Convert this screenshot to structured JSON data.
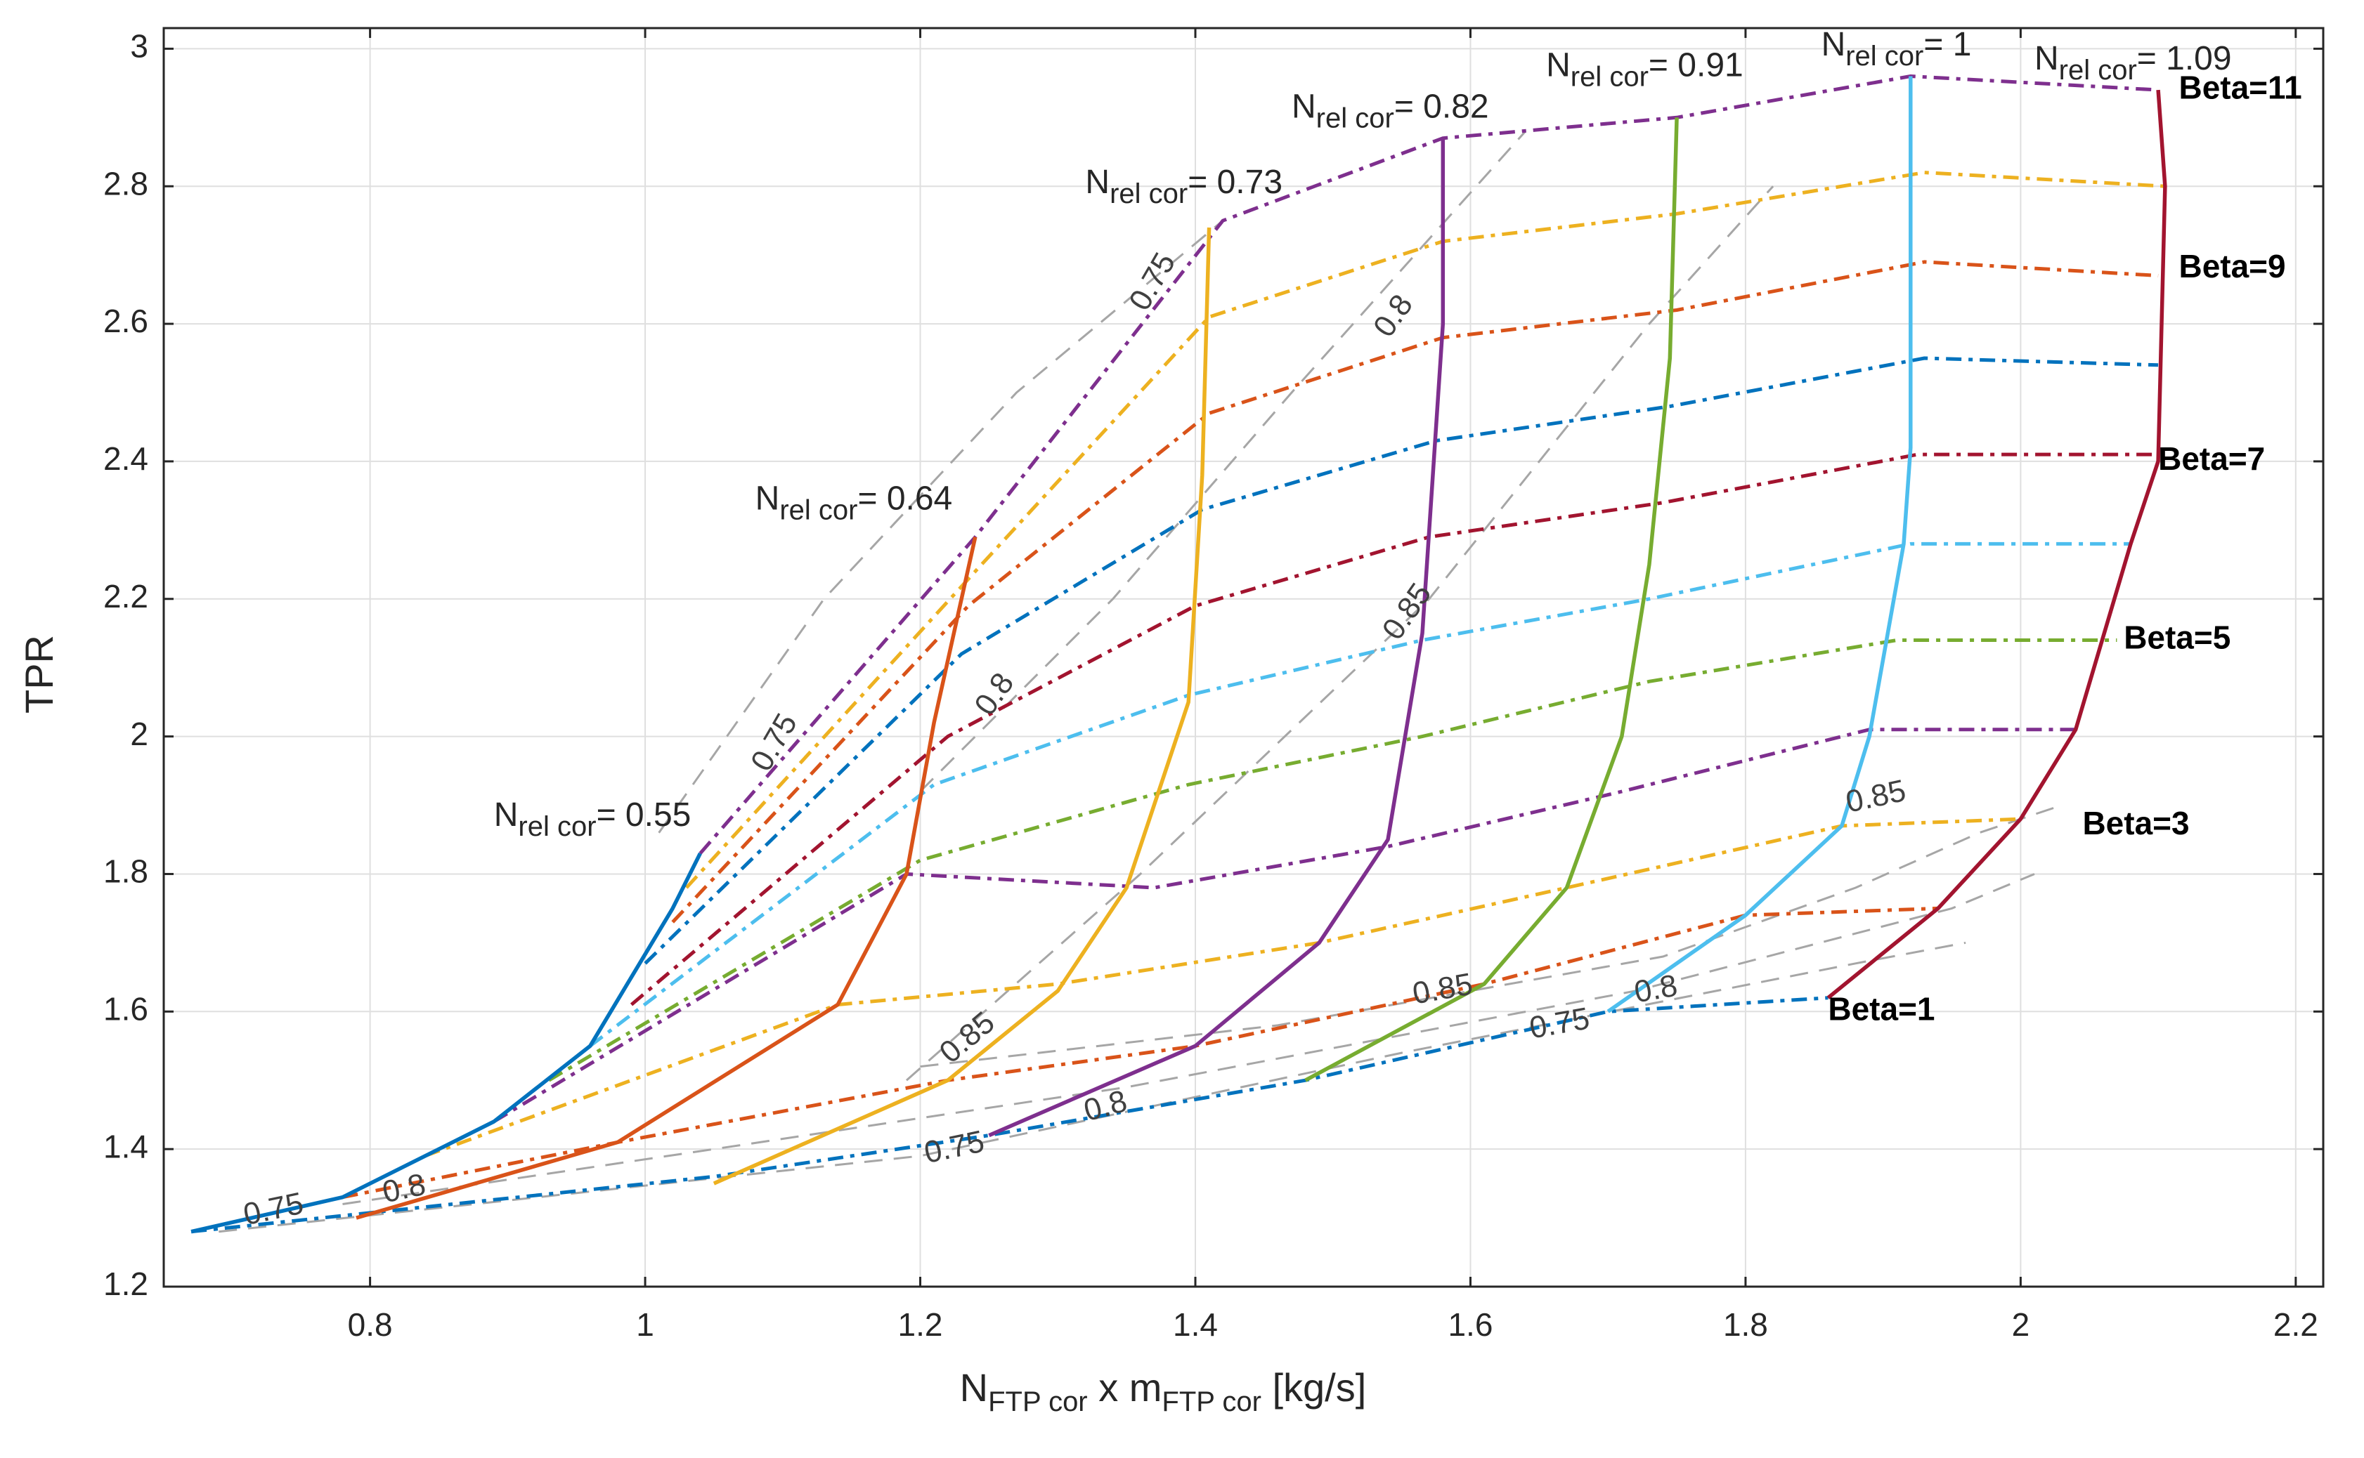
{
  "chart_data": {
    "type": "line",
    "title": "",
    "xlabel": "N_FTP cor x m_FTP cor [kg/s]",
    "xlabel_parts": {
      "a": "N",
      "a_sub": "FTP cor",
      "b": " x m",
      "b_sub": "FTP cor",
      "c": " [kg/s]"
    },
    "ylabel": "TPR",
    "xlim": [
      0.65,
      2.22
    ],
    "ylim": [
      1.2,
      3.03
    ],
    "grid": true,
    "xticks": [
      0.8,
      1,
      1.2,
      1.4,
      1.6,
      1.8,
      2,
      2.2
    ],
    "xtick_labels": [
      "0.8",
      "1",
      "1.2",
      "1.4",
      "1.6",
      "1.8",
      "2",
      "2.2"
    ],
    "yticks": [
      1.2,
      1.4,
      1.6,
      1.8,
      2,
      2.2,
      2.4,
      2.6,
      2.8,
      3
    ],
    "ytick_labels": [
      "1.2",
      "1.4",
      "1.6",
      "1.8",
      "2",
      "2.2",
      "2.4",
      "2.6",
      "2.8",
      "3"
    ],
    "speed_lines": [
      {
        "label_main": "N",
        "label_sub": "rel cor",
        "label_val": "= 0.55",
        "color": "#0072BD",
        "x": [
          0.67,
          0.78,
          0.89,
          0.96,
          0.99,
          1.02,
          1.04
        ],
        "y": [
          1.28,
          1.33,
          1.44,
          1.55,
          1.65,
          1.75,
          1.83
        ]
      },
      {
        "label_main": "N",
        "label_sub": "rel cor",
        "label_val": "= 0.64",
        "color": "#D95319",
        "x": [
          0.79,
          0.98,
          1.14,
          1.19,
          1.21,
          1.23,
          1.24
        ],
        "y": [
          1.3,
          1.41,
          1.61,
          1.8,
          2.02,
          2.2,
          2.29
        ]
      },
      {
        "label_main": "N",
        "label_sub": "rel cor",
        "label_val": "= 0.73",
        "color": "#EDB120",
        "x": [
          1.05,
          1.22,
          1.3,
          1.35,
          1.395,
          1.405,
          1.41
        ],
        "y": [
          1.35,
          1.5,
          1.63,
          1.78,
          2.05,
          2.38,
          2.74
        ]
      },
      {
        "label_main": "N",
        "label_sub": "rel cor",
        "label_val": "= 0.82",
        "color": "#7E2F8E",
        "x": [
          1.25,
          1.4,
          1.49,
          1.54,
          1.565,
          1.58,
          1.58
        ],
        "y": [
          1.42,
          1.55,
          1.7,
          1.85,
          2.15,
          2.6,
          2.87
        ]
      },
      {
        "label_main": "N",
        "label_sub": "rel cor",
        "label_val": "= 0.91",
        "color": "#77AC30",
        "x": [
          1.48,
          1.61,
          1.67,
          1.71,
          1.73,
          1.745,
          1.75
        ],
        "y": [
          1.5,
          1.64,
          1.78,
          2.0,
          2.25,
          2.55,
          2.9
        ]
      },
      {
        "label_main": "N",
        "label_sub": "rel cor",
        "label_val": "= 1",
        "color": "#4DBEEE",
        "x": [
          1.7,
          1.8,
          1.87,
          1.89,
          1.915,
          1.92,
          1.92
        ],
        "y": [
          1.6,
          1.74,
          1.87,
          2.0,
          2.28,
          2.42,
          2.96
        ]
      },
      {
        "label_main": "N",
        "label_sub": "rel cor",
        "label_val": "= 1.09",
        "color": "#A2142F",
        "x": [
          1.86,
          1.94,
          2.0,
          2.04,
          2.08,
          2.1,
          2.105,
          2.1
        ],
        "y": [
          1.62,
          1.75,
          1.88,
          2.01,
          2.28,
          2.4,
          2.8,
          2.94
        ]
      }
    ],
    "beta_lines": [
      {
        "name": "Beta=1",
        "color": "#0072BD",
        "x": [
          0.67,
          1.05,
          1.25,
          1.48,
          1.7,
          1.86
        ],
        "y": [
          1.28,
          1.36,
          1.42,
          1.5,
          1.6,
          1.62
        ]
      },
      {
        "name": "Beta=2",
        "color": "#D95319",
        "x": [
          0.78,
          0.98,
          1.22,
          1.4,
          1.61,
          1.8,
          1.94
        ],
        "y": [
          1.33,
          1.41,
          1.5,
          1.55,
          1.64,
          1.74,
          1.75
        ]
      },
      {
        "name": "Beta=3",
        "color": "#EDB120",
        "x": [
          0.84,
          1.14,
          1.3,
          1.49,
          1.67,
          1.87,
          2.0
        ],
        "y": [
          1.39,
          1.61,
          1.64,
          1.7,
          1.78,
          1.87,
          1.88
        ]
      },
      {
        "name": "Beta=4",
        "color": "#7E2F8E",
        "x": [
          0.89,
          1.19,
          1.37,
          1.54,
          1.71,
          1.89,
          2.04
        ],
        "y": [
          1.44,
          1.8,
          1.78,
          1.84,
          1.92,
          2.01,
          2.01
        ]
      },
      {
        "name": "Beta=5",
        "color": "#77AC30",
        "x": [
          0.93,
          1.2,
          1.395,
          1.565,
          1.73,
          1.91,
          2.07
        ],
        "y": [
          1.5,
          1.82,
          1.93,
          2.0,
          2.08,
          2.14,
          2.14
        ]
      },
      {
        "name": "Beta=6",
        "color": "#4DBEEE",
        "x": [
          0.96,
          1.21,
          1.395,
          1.565,
          1.73,
          1.92,
          2.08
        ],
        "y": [
          1.55,
          1.93,
          2.06,
          2.14,
          2.2,
          2.28,
          2.28
        ]
      },
      {
        "name": "Beta=7",
        "color": "#A2142F",
        "x": [
          0.99,
          1.22,
          1.4,
          1.57,
          1.74,
          1.925,
          2.1
        ],
        "y": [
          1.61,
          2.0,
          2.19,
          2.29,
          2.34,
          2.41,
          2.41
        ]
      },
      {
        "name": "Beta=8",
        "color": "#0072BD",
        "x": [
          1.0,
          1.23,
          1.405,
          1.575,
          1.745,
          1.93,
          2.1
        ],
        "y": [
          1.67,
          2.12,
          2.33,
          2.43,
          2.48,
          2.55,
          2.54
        ]
      },
      {
        "name": "Beta=9",
        "color": "#D95319",
        "x": [
          1.02,
          1.235,
          1.41,
          1.58,
          1.75,
          1.93,
          2.1
        ],
        "y": [
          1.73,
          2.19,
          2.47,
          2.58,
          2.62,
          2.69,
          2.67
        ]
      },
      {
        "name": "Beta=10",
        "color": "#EDB120",
        "x": [
          1.03,
          1.24,
          1.41,
          1.58,
          1.75,
          1.93,
          2.105
        ],
        "y": [
          1.78,
          2.24,
          2.61,
          2.72,
          2.76,
          2.82,
          2.8
        ]
      },
      {
        "name": "Beta=11",
        "color": "#7E2F8E",
        "x": [
          1.04,
          1.24,
          1.42,
          1.58,
          1.75,
          1.92,
          2.1
        ],
        "y": [
          1.83,
          2.29,
          2.75,
          2.87,
          2.9,
          2.96,
          2.94
        ]
      }
    ],
    "beta_labels": [
      {
        "text": "Beta=1",
        "x": 1.86,
        "y": 1.6
      },
      {
        "text": "Beta=3",
        "x": 2.045,
        "y": 1.87
      },
      {
        "text": "Beta=5",
        "x": 2.075,
        "y": 2.14
      },
      {
        "text": "Beta=7",
        "x": 2.1,
        "y": 2.4
      },
      {
        "text": "Beta=9",
        "x": 2.115,
        "y": 2.68
      },
      {
        "text": "Beta=11",
        "x": 2.115,
        "y": 2.94
      }
    ],
    "efficiency_contours": [
      {
        "level": "0.75",
        "x": [
          0.69,
          1.2,
          1.55,
          1.88,
          1.96
        ],
        "y": [
          1.28,
          1.39,
          1.54,
          1.67,
          1.7
        ]
      },
      {
        "level": "0.8",
        "x": [
          0.78,
          1.05,
          1.35,
          1.72,
          1.95,
          2.01
        ],
        "y": [
          1.32,
          1.4,
          1.49,
          1.63,
          1.75,
          1.8
        ]
      },
      {
        "level": "0.85",
        "x": [
          1.2,
          1.46,
          1.74,
          1.88,
          1.97,
          2.03
        ],
        "y": [
          1.52,
          1.58,
          1.68,
          1.78,
          1.86,
          1.9
        ]
      },
      {
        "level": "0.75",
        "x": [
          1.01,
          1.13,
          1.27,
          1.42
        ],
        "y": [
          1.86,
          2.2,
          2.5,
          2.75
        ]
      },
      {
        "level": "0.8",
        "x": [
          1.2,
          1.34,
          1.47,
          1.64
        ],
        "y": [
          1.92,
          2.2,
          2.5,
          2.88
        ]
      },
      {
        "level": "0.85",
        "x": [
          1.19,
          1.36,
          1.57,
          1.73,
          1.82
        ],
        "y": [
          1.5,
          1.8,
          2.2,
          2.6,
          2.8
        ]
      }
    ],
    "contour_labels": [
      {
        "text": "0.75",
        "x": 0.73,
        "y": 1.31,
        "angle": -12
      },
      {
        "text": "0.8",
        "x": 0.825,
        "y": 1.34,
        "angle": -12
      },
      {
        "text": "0.75",
        "x": 1.225,
        "y": 1.4,
        "angle": -12
      },
      {
        "text": "0.8",
        "x": 1.335,
        "y": 1.46,
        "angle": -15
      },
      {
        "text": "0.85",
        "x": 1.235,
        "y": 1.56,
        "angle": -40
      },
      {
        "text": "0.85",
        "x": 1.58,
        "y": 1.63,
        "angle": -10
      },
      {
        "text": "0.8",
        "x": 1.735,
        "y": 1.63,
        "angle": -10
      },
      {
        "text": "0.75",
        "x": 1.665,
        "y": 1.58,
        "angle": -10
      },
      {
        "text": "0.85",
        "x": 1.895,
        "y": 1.91,
        "angle": -12
      },
      {
        "text": "0.75",
        "x": 1.095,
        "y": 1.99,
        "angle": -60
      },
      {
        "text": "0.8",
        "x": 1.255,
        "y": 2.06,
        "angle": -55
      },
      {
        "text": "0.85",
        "x": 1.555,
        "y": 2.18,
        "angle": -55
      },
      {
        "text": "0.75",
        "x": 1.37,
        "y": 2.66,
        "angle": -60
      },
      {
        "text": "0.8",
        "x": 1.545,
        "y": 2.61,
        "angle": -55
      }
    ],
    "speed_labels": [
      {
        "index": 0,
        "x": 0.89,
        "y": 1.87
      },
      {
        "index": 1,
        "x": 1.08,
        "y": 2.33
      },
      {
        "index": 2,
        "x": 1.32,
        "y": 2.79
      },
      {
        "index": 3,
        "x": 1.47,
        "y": 2.9
      },
      {
        "index": 4,
        "x": 1.655,
        "y": 2.96
      },
      {
        "index": 5,
        "x": 1.855,
        "y": 2.99
      },
      {
        "index": 6,
        "x": 2.01,
        "y": 2.97
      }
    ]
  }
}
